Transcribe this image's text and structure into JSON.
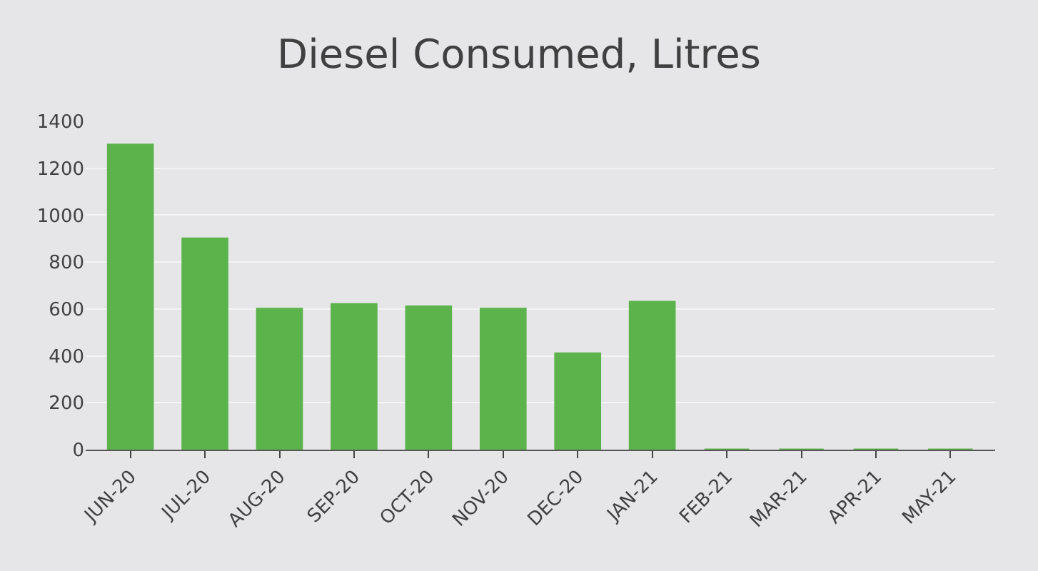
{
  "chart_data": {
    "type": "bar",
    "title": "Diesel Consumed, Litres",
    "categories": [
      "JUN-20",
      "JUL-20",
      "AUG-20",
      "SEP-20",
      "OCT-20",
      "NOV-20",
      "DEC-20",
      "JAN-21",
      "FEB-21",
      "MAR-21",
      "APR-21",
      "MAY-21"
    ],
    "values": [
      1300,
      900,
      600,
      620,
      610,
      600,
      410,
      630,
      0,
      0,
      0,
      0
    ],
    "color": "#5cb34c",
    "ylim": [
      0,
      1400
    ],
    "yticks": [
      0,
      200,
      400,
      600,
      800,
      1000,
      1200,
      1400
    ],
    "grid": "y"
  }
}
